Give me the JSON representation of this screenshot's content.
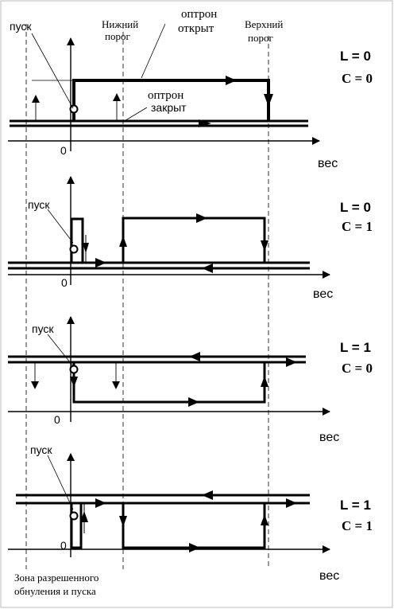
{
  "labels": {
    "pusk": "пуск",
    "lower_threshold_line1": "Нижний",
    "lower_threshold_line2": "порог",
    "upper_threshold_line1": "Верхний",
    "upper_threshold_line2": "порог",
    "optron_open_line1": "оптрон",
    "optron_open_line2": "открыт",
    "optron_closed_line1": "оптрон",
    "optron_closed_line2": "закрыт",
    "zero": "0",
    "axis_label": "вес",
    "zone_line1": "Зона разрешенного",
    "zone_line2": "обнуления и пуска"
  },
  "panels": [
    {
      "L": "L = 0",
      "C": "C = 0"
    },
    {
      "L": "L = 0",
      "C": "C = 1"
    },
    {
      "L": "L = 1",
      "C": "C = 0"
    },
    {
      "L": "L = 1",
      "C": "C = 1"
    }
  ],
  "colors": {
    "ink": "#000000",
    "background": "#ffffff",
    "border": "#bbbbbb"
  }
}
